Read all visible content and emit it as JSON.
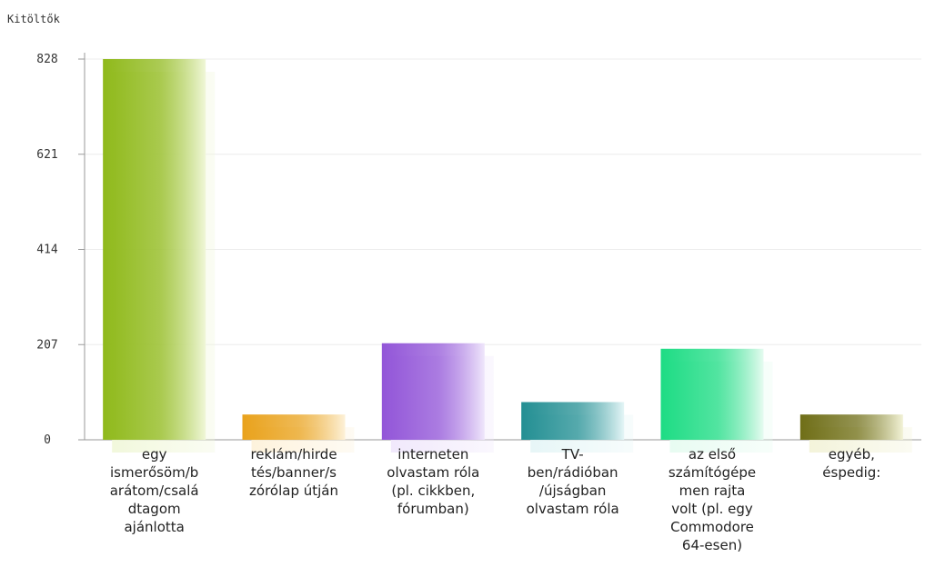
{
  "chart_data": {
    "type": "bar",
    "ylabel": "Kitöltők",
    "yticks": [
      0,
      207,
      414,
      621,
      828
    ],
    "ylim": [
      0,
      828
    ],
    "grid": true,
    "categories": [
      [
        "egy",
        "ismerősöm/b",
        "arátom/csalá",
        "dtagom",
        "ajánlotta"
      ],
      [
        "reklám/hirde",
        "tés/banner/s",
        "zórólap útján"
      ],
      [
        "interneten",
        "olvastam róla",
        "(pl. cikkben,",
        "fórumban)"
      ],
      [
        "TV-",
        "ben/rádióban",
        "/újságban",
        "olvastam róla"
      ],
      [
        "az első",
        "számítógépe",
        "men rajta",
        "volt (pl. egy",
        "Commodore",
        "64-esen)"
      ],
      [
        "egyéb,",
        "éspedig:"
      ]
    ],
    "values": [
      828,
      55,
      210,
      82,
      198,
      55
    ],
    "colors": [
      [
        "#8fb91a",
        "#f0f7d8"
      ],
      [
        "#e9a21c",
        "#fdf1d8"
      ],
      [
        "#9255d8",
        "#efe6fb"
      ],
      [
        "#238f93",
        "#e4f5f6"
      ],
      [
        "#1ddc84",
        "#e5fbf0"
      ],
      [
        "#6f6e17",
        "#f2f2d6"
      ]
    ]
  }
}
